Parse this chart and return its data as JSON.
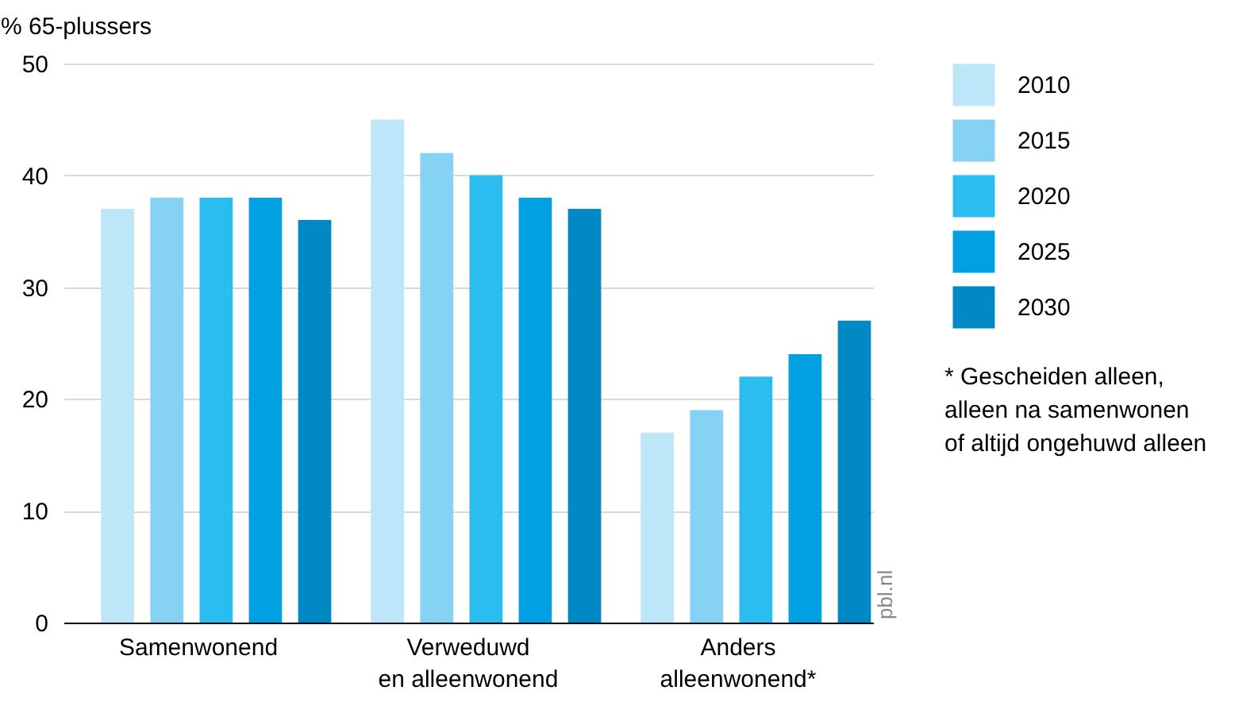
{
  "chart_data": {
    "type": "bar",
    "ylabel": "% 65-plussers",
    "categories": [
      "Samenwonend",
      "Verweduwd\nen alleenwonend",
      "Anders\nalleenwonend*"
    ],
    "series": [
      {
        "name": "2010",
        "color": "#bee6f9",
        "values": [
          37,
          45,
          17
        ]
      },
      {
        "name": "2015",
        "color": "#86d2f4",
        "values": [
          38,
          42,
          19
        ]
      },
      {
        "name": "2020",
        "color": "#2bbdef",
        "values": [
          38,
          40,
          22
        ]
      },
      {
        "name": "2025",
        "color": "#00a0e2",
        "values": [
          38,
          38,
          24
        ]
      },
      {
        "name": "2030",
        "color": "#0089c3",
        "values": [
          36,
          37,
          27
        ]
      }
    ],
    "ylim": [
      0,
      50
    ],
    "yticks": [
      0,
      10,
      20,
      30,
      40,
      50
    ],
    "grid": "y",
    "legend": "top right",
    "annotations": [
      "* Gescheiden alleen,\nalleen na samenwonen\nof altijd ongehuwd alleen",
      "pbl.nl"
    ]
  }
}
